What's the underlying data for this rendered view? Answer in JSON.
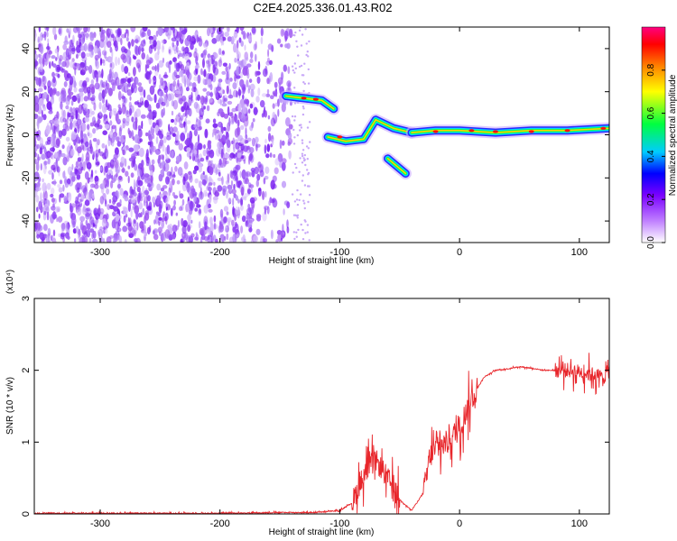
{
  "title": "C2E4.2025.336.01.43.R02",
  "chart_data": [
    {
      "type": "heatmap",
      "xlabel": "Height of straight line (km)",
      "ylabel": "Frequency (Hz)",
      "xlim": [
        -355,
        125
      ],
      "ylim": [
        -50,
        50
      ],
      "x_ticks": [
        -300,
        -200,
        -100,
        0,
        100
      ],
      "y_ticks": [
        -40,
        -20,
        0,
        20,
        40
      ],
      "colorbar": {
        "label": "Normalized spectral amplitude",
        "range": [
          0,
          1
        ],
        "ticks": [
          0.0,
          0.2,
          0.4,
          0.6,
          0.8
        ],
        "colormap": [
          "#ffffff",
          "#8a2be2",
          "#0000ff",
          "#00ffff",
          "#00ff00",
          "#ffff00",
          "#ff8000",
          "#ff0000"
        ]
      },
      "noise_region": {
        "x": [
          -355,
          -140
        ],
        "y": [
          -50,
          50
        ]
      },
      "signal_tracks": [
        {
          "x": [
            -145,
            -130,
            -115,
            -105
          ],
          "y": [
            18,
            17,
            16,
            12
          ]
        },
        {
          "x": [
            -110,
            -95,
            -80,
            -70,
            -55,
            -40
          ],
          "y": [
            -1,
            -3,
            -2,
            7,
            3,
            1
          ]
        },
        {
          "x": [
            -60,
            -45
          ],
          "y": [
            -11,
            -18
          ]
        },
        {
          "x": [
            -40,
            -20,
            0,
            30,
            60,
            90,
            125
          ],
          "y": [
            1,
            2,
            2,
            1,
            2,
            2,
            3
          ]
        }
      ]
    },
    {
      "type": "line",
      "xlabel": "Height of straight line (km)",
      "ylabel": "SNR (10 * v/v)",
      "exponent_label": "(x10⁴)",
      "xlim": [
        -355,
        125
      ],
      "ylim": [
        0,
        3
      ],
      "x_ticks": [
        -300,
        -200,
        -100,
        0,
        100
      ],
      "y_ticks": [
        0,
        1,
        2,
        3
      ],
      "color": "#e8262b",
      "series": [
        {
          "x": [
            -355,
            -300,
            -200,
            -150,
            -120,
            -100,
            -90,
            -80,
            -70,
            -60,
            -50,
            -40,
            -30,
            -25,
            -20,
            -10,
            0,
            10,
            20,
            30,
            40,
            50,
            60,
            70,
            80,
            90,
            100,
            110,
            120,
            125
          ],
          "y": [
            0.01,
            0.01,
            0.01,
            0.02,
            0.02,
            0.05,
            0.15,
            0.55,
            0.75,
            0.5,
            0.2,
            0.05,
            0.3,
            0.8,
            0.9,
            1.0,
            1.2,
            1.6,
            1.9,
            2.0,
            2.02,
            2.05,
            2.03,
            2.0,
            2.0,
            2.0,
            1.98,
            1.95,
            1.9,
            2.0
          ]
        }
      ],
      "noise_amplitude": [
        {
          "from": -90,
          "to": -50,
          "amp": 0.45
        },
        {
          "from": -30,
          "to": 15,
          "amp": 0.5
        },
        {
          "from": 80,
          "to": 125,
          "amp": 0.3
        }
      ]
    }
  ]
}
